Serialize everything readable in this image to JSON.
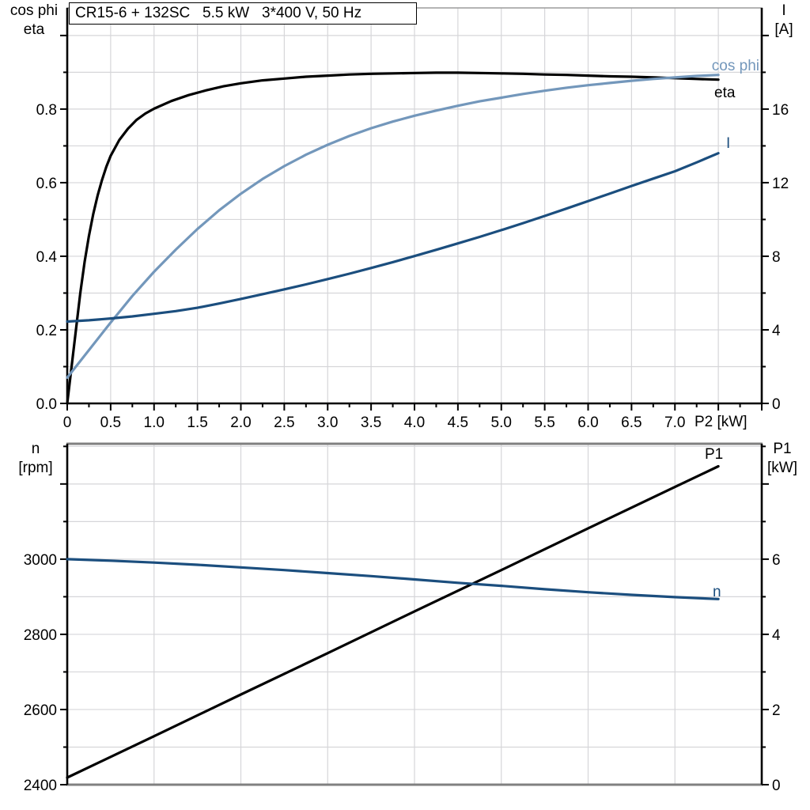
{
  "colors": {
    "black": "#000000",
    "light_blue": "#7397BB",
    "dark_blue": "#1B4E7E",
    "grid": "#D6D6D9",
    "frame_gray": "#808080",
    "top_frame_gray": "#9C9C9C",
    "background": "#FFFFFF"
  },
  "chart_data": [
    {
      "id": "motor-efficiency-chart",
      "type": "line",
      "title": "CR15-6 + 132SC   5.5 kW   3*400 V, 50 Hz",
      "x_axis": {
        "label": "P2 [kW]",
        "min": 0,
        "max": 8,
        "grid_step": 0.5,
        "minor_tick_step": 0.25,
        "labeled_ticks": [
          {
            "v": 0,
            "t": "0"
          },
          {
            "v": 0.5,
            "t": "0.5"
          },
          {
            "v": 1,
            "t": "1.0"
          },
          {
            "v": 1.5,
            "t": "1.5"
          },
          {
            "v": 2,
            "t": "2.0"
          },
          {
            "v": 2.5,
            "t": "2.5"
          },
          {
            "v": 3,
            "t": "3.0"
          },
          {
            "v": 3.5,
            "t": "3.5"
          },
          {
            "v": 4,
            "t": "4.0"
          },
          {
            "v": 4.5,
            "t": "4.5"
          },
          {
            "v": 5,
            "t": "5.0"
          },
          {
            "v": 5.5,
            "t": "5.5"
          },
          {
            "v": 6,
            "t": "6.0"
          },
          {
            "v": 6.5,
            "t": "6.5"
          },
          {
            "v": 7,
            "t": "7.0"
          }
        ]
      },
      "left_axis": {
        "label_lines": [
          "cos phi",
          "eta"
        ],
        "min": 0,
        "max": 1.075,
        "grid_step": 0.1,
        "minor_tick_step": 0.1,
        "labeled_ticks": [
          {
            "v": 0,
            "t": "0.0"
          },
          {
            "v": 0.2,
            "t": "0.2"
          },
          {
            "v": 0.4,
            "t": "0.4"
          },
          {
            "v": 0.6,
            "t": "0.6"
          },
          {
            "v": 0.8,
            "t": "0.8"
          }
        ]
      },
      "right_axis": {
        "label_lines": [
          "I",
          "[A]"
        ],
        "min": 0,
        "max": 21.5,
        "minor_tick_step": 2,
        "labeled_ticks": [
          {
            "v": 0,
            "t": "0"
          },
          {
            "v": 4,
            "t": "4"
          },
          {
            "v": 8,
            "t": "8"
          },
          {
            "v": 12,
            "t": "12"
          },
          {
            "v": 16,
            "t": "16"
          }
        ]
      },
      "series": [
        {
          "name": "eta",
          "label": "eta",
          "axis": "left",
          "color": "#000000",
          "points": [
            [
              0,
              0
            ],
            [
              0.05,
              0.1
            ],
            [
              0.1,
              0.2
            ],
            [
              0.15,
              0.3
            ],
            [
              0.2,
              0.385
            ],
            [
              0.25,
              0.455
            ],
            [
              0.3,
              0.515
            ],
            [
              0.35,
              0.565
            ],
            [
              0.4,
              0.607
            ],
            [
              0.45,
              0.643
            ],
            [
              0.5,
              0.673
            ],
            [
              0.6,
              0.716
            ],
            [
              0.7,
              0.747
            ],
            [
              0.8,
              0.771
            ],
            [
              0.9,
              0.788
            ],
            [
              1.0,
              0.801
            ],
            [
              1.2,
              0.822
            ],
            [
              1.4,
              0.838
            ],
            [
              1.6,
              0.851
            ],
            [
              1.8,
              0.862
            ],
            [
              2.0,
              0.87
            ],
            [
              2.25,
              0.878
            ],
            [
              2.5,
              0.883
            ],
            [
              2.75,
              0.888
            ],
            [
              3.0,
              0.891
            ],
            [
              3.25,
              0.894
            ],
            [
              3.5,
              0.896
            ],
            [
              3.75,
              0.897
            ],
            [
              4.0,
              0.898
            ],
            [
              4.25,
              0.899
            ],
            [
              4.5,
              0.899
            ],
            [
              4.75,
              0.898
            ],
            [
              5.0,
              0.897
            ],
            [
              5.25,
              0.896
            ],
            [
              5.5,
              0.894
            ],
            [
              5.75,
              0.893
            ],
            [
              6.0,
              0.891
            ],
            [
              6.25,
              0.889
            ],
            [
              6.5,
              0.888
            ],
            [
              6.75,
              0.886
            ],
            [
              7.0,
              0.884
            ],
            [
              7.25,
              0.882
            ],
            [
              7.5,
              0.88
            ]
          ]
        },
        {
          "name": "cos phi",
          "label": "cos phi",
          "axis": "left",
          "color": "#7397BB",
          "points": [
            [
              0,
              0.07
            ],
            [
              0.25,
              0.145
            ],
            [
              0.5,
              0.22
            ],
            [
              0.75,
              0.292
            ],
            [
              1.0,
              0.358
            ],
            [
              1.25,
              0.418
            ],
            [
              1.5,
              0.474
            ],
            [
              1.75,
              0.525
            ],
            [
              2.0,
              0.57
            ],
            [
              2.25,
              0.61
            ],
            [
              2.5,
              0.645
            ],
            [
              2.75,
              0.676
            ],
            [
              3.0,
              0.703
            ],
            [
              3.25,
              0.727
            ],
            [
              3.5,
              0.748
            ],
            [
              3.75,
              0.766
            ],
            [
              4.0,
              0.782
            ],
            [
              4.25,
              0.796
            ],
            [
              4.5,
              0.809
            ],
            [
              4.75,
              0.821
            ],
            [
              5.0,
              0.831
            ],
            [
              5.25,
              0.841
            ],
            [
              5.5,
              0.85
            ],
            [
              5.75,
              0.858
            ],
            [
              6.0,
              0.865
            ],
            [
              6.25,
              0.871
            ],
            [
              6.5,
              0.877
            ],
            [
              6.75,
              0.882
            ],
            [
              7.0,
              0.886
            ],
            [
              7.25,
              0.89
            ],
            [
              7.5,
              0.893
            ]
          ]
        },
        {
          "name": "I",
          "label": "I",
          "axis": "right",
          "color": "#1B4E7E",
          "points": [
            [
              0,
              4.45
            ],
            [
              0.25,
              4.52
            ],
            [
              0.5,
              4.62
            ],
            [
              0.75,
              4.73
            ],
            [
              1.0,
              4.87
            ],
            [
              1.25,
              5.02
            ],
            [
              1.5,
              5.2
            ],
            [
              1.75,
              5.43
            ],
            [
              2.0,
              5.68
            ],
            [
              2.25,
              5.94
            ],
            [
              2.5,
              6.2
            ],
            [
              2.75,
              6.47
            ],
            [
              3.0,
              6.76
            ],
            [
              3.25,
              7.05
            ],
            [
              3.5,
              7.36
            ],
            [
              3.75,
              7.68
            ],
            [
              4.0,
              8.01
            ],
            [
              4.25,
              8.35
            ],
            [
              4.5,
              8.7
            ],
            [
              4.75,
              9.05
            ],
            [
              5.0,
              9.42
            ],
            [
              5.25,
              9.8
            ],
            [
              5.5,
              10.19
            ],
            [
              5.75,
              10.59
            ],
            [
              6.0,
              11.0
            ],
            [
              6.25,
              11.41
            ],
            [
              6.5,
              11.82
            ],
            [
              6.75,
              12.22
            ],
            [
              7.0,
              12.62
            ],
            [
              7.25,
              13.1
            ],
            [
              7.5,
              13.6
            ]
          ]
        }
      ]
    },
    {
      "id": "motor-speed-power-chart",
      "type": "line",
      "title": "",
      "x_axis": {
        "label": "",
        "min": 0,
        "max": 8,
        "grid_step": 1,
        "labeled_ticks": []
      },
      "left_axis": {
        "label_lines": [
          "n",
          "[rpm]"
        ],
        "min": 2400,
        "max": 3307,
        "grid_step": 100,
        "minor_tick_step": 100,
        "labeled_ticks": [
          {
            "v": 2400,
            "t": "2400"
          },
          {
            "v": 2600,
            "t": "2600"
          },
          {
            "v": 2800,
            "t": "2800"
          },
          {
            "v": 3000,
            "t": "3000"
          }
        ]
      },
      "right_axis": {
        "label_lines": [
          "P1",
          "[kW]"
        ],
        "min": 0,
        "max": 9.07,
        "minor_tick_step": 1,
        "labeled_ticks": [
          {
            "v": 0,
            "t": "0"
          },
          {
            "v": 2,
            "t": "2"
          },
          {
            "v": 4,
            "t": "4"
          },
          {
            "v": 6,
            "t": "6"
          }
        ]
      },
      "series": [
        {
          "name": "P1",
          "label": "P1",
          "axis": "right",
          "color": "#000000",
          "points": [
            [
              0,
              0.19
            ],
            [
              1,
              1.29
            ],
            [
              2,
              2.4
            ],
            [
              3,
              3.5
            ],
            [
              4,
              4.61
            ],
            [
              5,
              5.71
            ],
            [
              6,
              6.82
            ],
            [
              7,
              7.92
            ],
            [
              7.5,
              8.47
            ]
          ]
        },
        {
          "name": "n",
          "label": "n",
          "axis": "left",
          "color": "#1B4E7E",
          "points": [
            [
              0,
              3000
            ],
            [
              0.5,
              2996
            ],
            [
              1,
              2991
            ],
            [
              1.5,
              2985
            ],
            [
              2,
              2978
            ],
            [
              2.5,
              2971
            ],
            [
              3,
              2963
            ],
            [
              3.5,
              2955
            ],
            [
              4,
              2946
            ],
            [
              4.5,
              2937
            ],
            [
              5,
              2929
            ],
            [
              5.5,
              2920
            ],
            [
              6,
              2912
            ],
            [
              6.5,
              2905
            ],
            [
              7,
              2899
            ],
            [
              7.5,
              2894
            ]
          ]
        }
      ]
    }
  ]
}
